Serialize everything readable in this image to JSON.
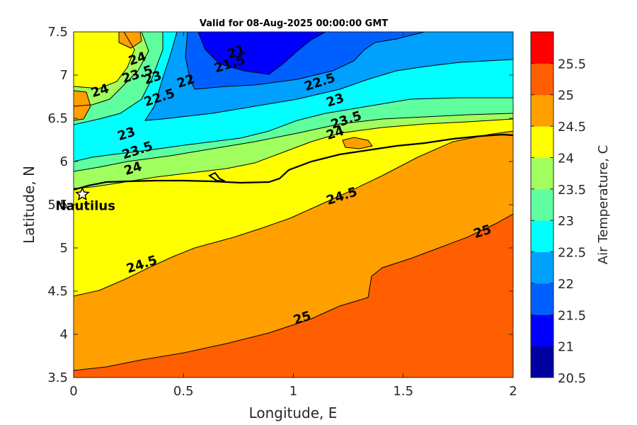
{
  "chart_data": {
    "type": "contourf",
    "title": "Valid for 08-Aug-2025 00:00:00 GMT",
    "xlabel": "Longitude, E",
    "ylabel": "Latitude, N",
    "xlim": [
      0,
      2
    ],
    "ylim": [
      3.5,
      7.5
    ],
    "xticks": [
      "0",
      "0.5",
      "1",
      "1.5",
      "2"
    ],
    "yticks": [
      "3.5",
      "4",
      "4.5",
      "5",
      "5.5",
      "6",
      "6.5",
      "7",
      "7.5"
    ],
    "colorbar": {
      "label": "Air Temperature, C",
      "levels": [
        20.5,
        21,
        21.5,
        22,
        22.5,
        23,
        23.5,
        24,
        24.5,
        25,
        25.5
      ],
      "tick_labels": [
        "20.5",
        "21",
        "21.5",
        "22",
        "22.5",
        "23",
        "23.5",
        "24",
        "24.5",
        "25",
        "25.5"
      ],
      "colors": [
        "#00009f",
        "#0000ff",
        "#0060ff",
        "#00a0ff",
        "#00ffff",
        "#5fffa0",
        "#a0ff5f",
        "#ffff00",
        "#ffa000",
        "#ff5f00",
        "#ff0000"
      ]
    },
    "contour_labels": [
      {
        "text": "21",
        "lon": 0.74,
        "lat": 7.27
      },
      {
        "text": "21.5",
        "lon": 0.71,
        "lat": 7.13
      },
      {
        "text": "22",
        "lon": 0.51,
        "lat": 6.93
      },
      {
        "text": "22.5",
        "lon": 1.12,
        "lat": 6.92
      },
      {
        "text": "22.5",
        "lon": 0.39,
        "lat": 6.74
      },
      {
        "text": "23",
        "lon": 1.19,
        "lat": 6.71
      },
      {
        "text": "23.5",
        "lon": 1.24,
        "lat": 6.48
      },
      {
        "text": "24",
        "lon": 1.19,
        "lat": 6.33
      },
      {
        "text": "24",
        "lon": 0.29,
        "lat": 7.19
      },
      {
        "text": "23.5",
        "lon": 0.29,
        "lat": 7.01
      },
      {
        "text": "23",
        "lon": 0.36,
        "lat": 6.97
      },
      {
        "text": "24",
        "lon": 0.12,
        "lat": 6.82
      },
      {
        "text": "23",
        "lon": 0.24,
        "lat": 6.32
      },
      {
        "text": "23.5",
        "lon": 0.29,
        "lat": 6.13
      },
      {
        "text": "24",
        "lon": 0.27,
        "lat": 5.92
      },
      {
        "text": "24.5",
        "lon": 1.22,
        "lat": 5.6
      },
      {
        "text": "24.5",
        "lon": 0.31,
        "lat": 4.81
      },
      {
        "text": "25",
        "lon": 1.86,
        "lat": 5.19
      },
      {
        "text": "25",
        "lon": 1.04,
        "lat": 4.19
      }
    ],
    "station": {
      "name": "Nautilus",
      "lon": 0.04,
      "lat": 5.62
    }
  }
}
